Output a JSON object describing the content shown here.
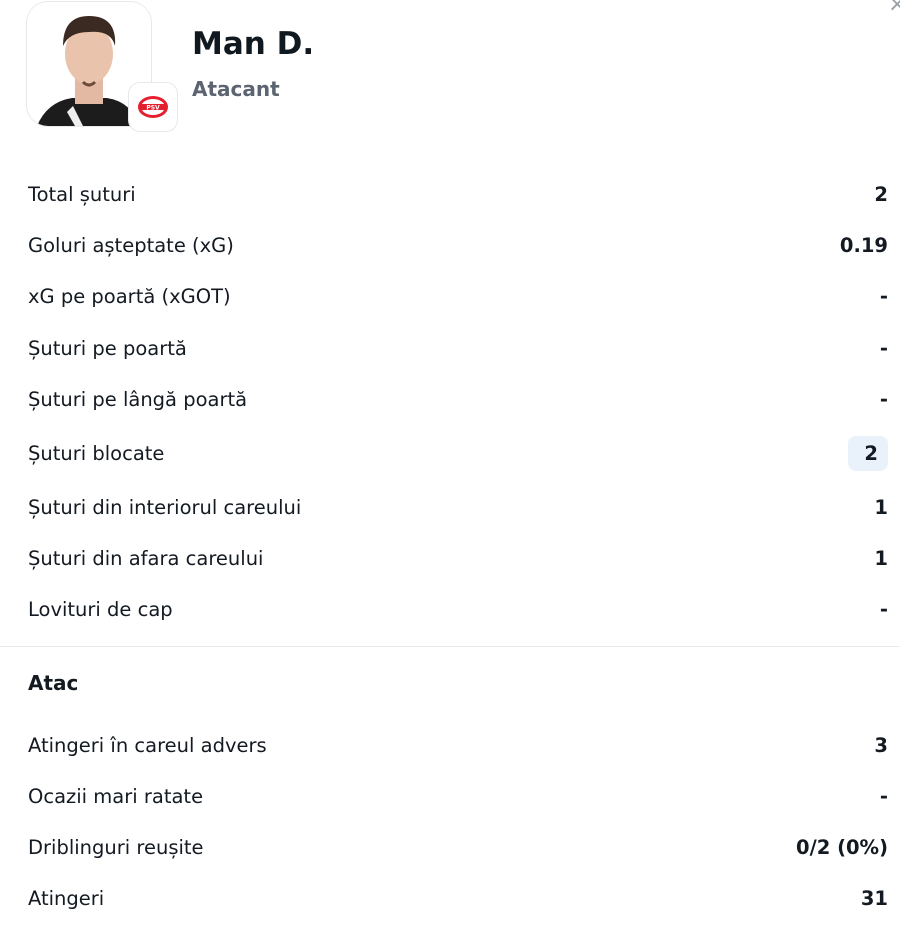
{
  "player": {
    "name": "Man D.",
    "position": "Atacant",
    "club_badge": "PSV"
  },
  "shooting": [
    {
      "label": "Total șuturi",
      "value": "2"
    },
    {
      "label": "Goluri așteptate (xG)",
      "value": "0.19"
    },
    {
      "label": "xG pe poartă (xGOT)",
      "value": "-"
    },
    {
      "label": "Șuturi pe poartă",
      "value": "-"
    },
    {
      "label": "Șuturi pe lângă poartă",
      "value": "-"
    },
    {
      "label": "Șuturi blocate",
      "value": "2",
      "highlighted": true
    },
    {
      "label": "Șuturi din interiorul careului",
      "value": "1"
    },
    {
      "label": "Șuturi din afara careului",
      "value": "1"
    },
    {
      "label": "Lovituri de cap",
      "value": "-"
    }
  ],
  "attack": {
    "title": "Atac",
    "rows": [
      {
        "label": "Atingeri în careul advers",
        "value": "3"
      },
      {
        "label": "Ocazii mari ratate",
        "value": "-"
      },
      {
        "label": "Driblinguri reușite",
        "value": "0/2 (0%)"
      },
      {
        "label": "Atingeri",
        "value": "31"
      }
    ]
  },
  "colors": {
    "highlight": "#e9f2fb",
    "text": "#141a22",
    "muted": "#5b6470"
  }
}
